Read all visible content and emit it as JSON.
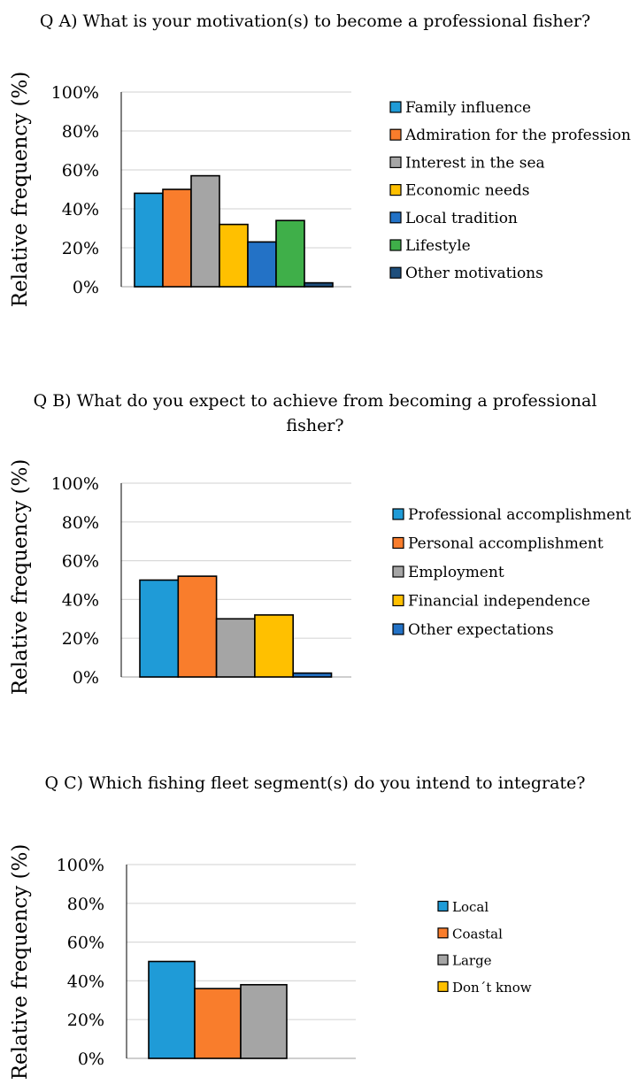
{
  "colors": {
    "family": "#1f9bd7",
    "orange": "#f97d2c",
    "gray": "#a5a5a5",
    "yellow": "#ffc000",
    "blue": "#2372c6",
    "green": "#3faf49",
    "navy": "#1e4e7c"
  },
  "chart_data": [
    {
      "type": "bar",
      "title": "Q A) What is your motivation(s) to become a professional fisher?",
      "ylabel": "Relative frequency (%)",
      "ylim": [
        0,
        100
      ],
      "yticks": [
        "0%",
        "20%",
        "40%",
        "60%",
        "80%",
        "100%"
      ],
      "legend_position": "right",
      "series": [
        {
          "name": "Family influence",
          "value": 48,
          "color": "#1f9bd7"
        },
        {
          "name": "Admiration for the profession",
          "value": 50,
          "color": "#f97d2c"
        },
        {
          "name": "Interest in the sea",
          "value": 57,
          "color": "#a5a5a5"
        },
        {
          "name": "Economic needs",
          "value": 32,
          "color": "#ffc000"
        },
        {
          "name": "Local tradition",
          "value": 23,
          "color": "#2372c6"
        },
        {
          "name": "Lifestyle",
          "value": 34,
          "color": "#3faf49"
        },
        {
          "name": "Other motivations",
          "value": 2,
          "color": "#1e4e7c"
        }
      ]
    },
    {
      "type": "bar",
      "title_lines": [
        "Q B) What do you expect to achieve from becoming a professional",
        "fisher?"
      ],
      "ylabel": "Relative frequency (%)",
      "ylim": [
        0,
        100
      ],
      "yticks": [
        "0%",
        "20%",
        "40%",
        "60%",
        "80%",
        "100%"
      ],
      "legend_position": "right",
      "series": [
        {
          "name": "Professional accomplishment",
          "value": 50,
          "color": "#1f9bd7"
        },
        {
          "name": "Personal accomplishment",
          "value": 52,
          "color": "#f97d2c"
        },
        {
          "name": "Employment",
          "value": 30,
          "color": "#a5a5a5"
        },
        {
          "name": "Financial independence",
          "value": 32,
          "color": "#ffc000"
        },
        {
          "name": "Other expectations",
          "value": 2,
          "color": "#2372c6"
        }
      ]
    },
    {
      "type": "bar",
      "title": "Q C) Which fishing fleet segment(s) do you intend to integrate?",
      "ylabel": "Relative frequency (%)",
      "ylim": [
        0,
        100
      ],
      "yticks": [
        "0%",
        "20%",
        "40%",
        "60%",
        "80%",
        "100%"
      ],
      "legend_position": "right",
      "series": [
        {
          "name": "Local",
          "value": 50,
          "color": "#1f9bd7"
        },
        {
          "name": "Coastal",
          "value": 36,
          "color": "#f97d2c"
        },
        {
          "name": "Large",
          "value": 38,
          "color": "#a5a5a5"
        },
        {
          "name": "Don´t know",
          "value": 0,
          "color": "#ffc000"
        }
      ]
    }
  ]
}
